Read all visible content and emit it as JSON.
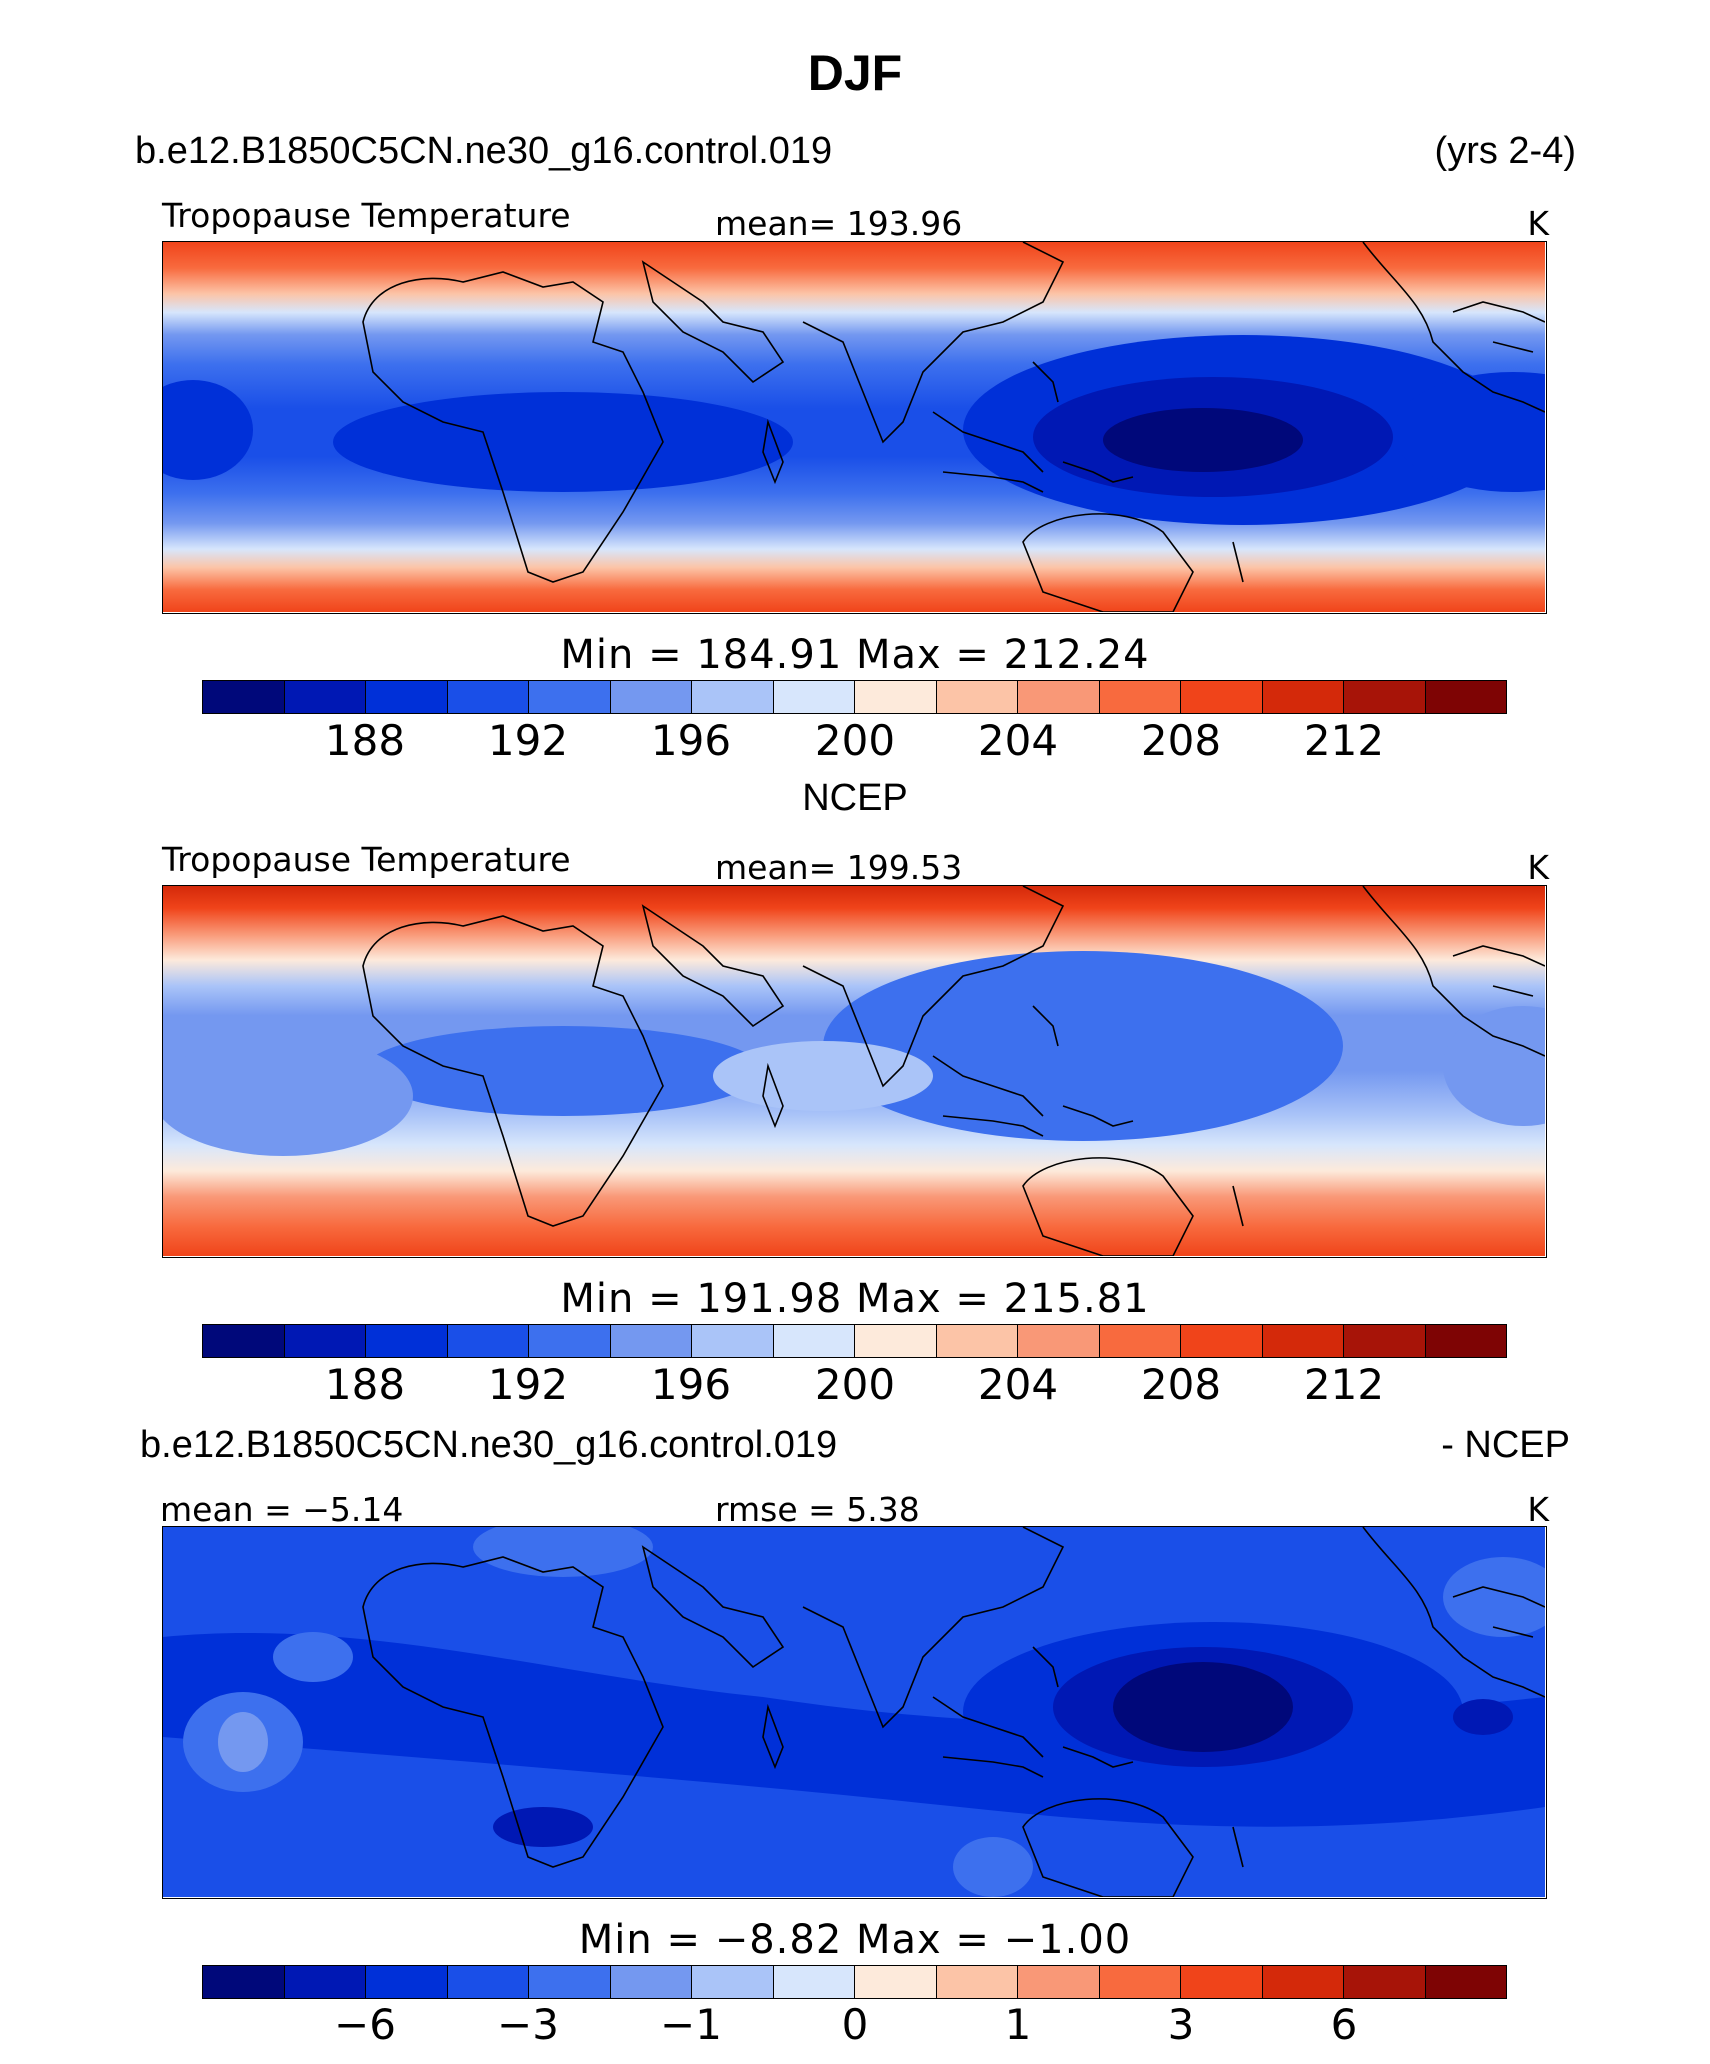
{
  "page": {
    "title": "DJF",
    "case_name": "b.e12.B1850C5CN.ne30_g16.control.019",
    "years": "(yrs 2-4)",
    "obs_title": "NCEP",
    "diff_case": "b.e12.B1850C5CN.ne30_g16.control.019",
    "diff_suffix": "- NCEP"
  },
  "colorbar_colors": [
    "#00087a",
    "#0018b4",
    "#0030d8",
    "#1a4fe8",
    "#3d70ee",
    "#7498f0",
    "#aac4f8",
    "#d7e6fc",
    "#fdeadb",
    "#fcc4a7",
    "#f99877",
    "#f86a3e",
    "#f0441a",
    "#d4290a",
    "#a71408",
    "#7e0404"
  ],
  "chart_data": [
    {
      "type": "heatmap",
      "name": "model",
      "title": "Tropopause Temperature",
      "mean_text": "mean=  193.96",
      "units": "K",
      "minmax_text": "Min  =  184.91  Max  =  212.24",
      "min": 184.91,
      "max": 212.24,
      "mean": 193.96,
      "contour_levels": [
        186,
        188,
        190,
        192,
        194,
        196,
        198,
        200,
        202,
        204,
        206,
        208,
        210,
        212,
        214
      ],
      "colorbar_ticks": [
        "188",
        "192",
        "196",
        "200",
        "204",
        "208",
        "212"
      ]
    },
    {
      "type": "heatmap",
      "name": "obs",
      "title": "Tropopause Temperature",
      "mean_text": "mean=  199.53",
      "units": "K",
      "minmax_text": "Min  =  191.98  Max  =  215.81",
      "min": 191.98,
      "max": 215.81,
      "mean": 199.53,
      "contour_levels": [
        186,
        188,
        190,
        192,
        194,
        196,
        198,
        200,
        202,
        204,
        206,
        208,
        210,
        212,
        214
      ],
      "colorbar_ticks": [
        "188",
        "192",
        "196",
        "200",
        "204",
        "208",
        "212"
      ]
    },
    {
      "type": "heatmap",
      "name": "difference",
      "mean_text": "mean =   −5.14",
      "rmse_text": "rmse  =     5.38",
      "units": "K",
      "minmax_text": "Min  =   −8.82  Max  =   −1.00",
      "min": -8.82,
      "max": -1.0,
      "mean": -5.14,
      "rmse": 5.38,
      "contour_levels": [
        -8,
        -6,
        -4,
        -3,
        -2,
        -1,
        -0.5,
        0,
        0.5,
        1,
        2,
        3,
        4,
        6,
        8
      ],
      "colorbar_ticks": [
        "−6",
        "−3",
        "−1",
        "0",
        "1",
        "3",
        "6"
      ]
    }
  ]
}
